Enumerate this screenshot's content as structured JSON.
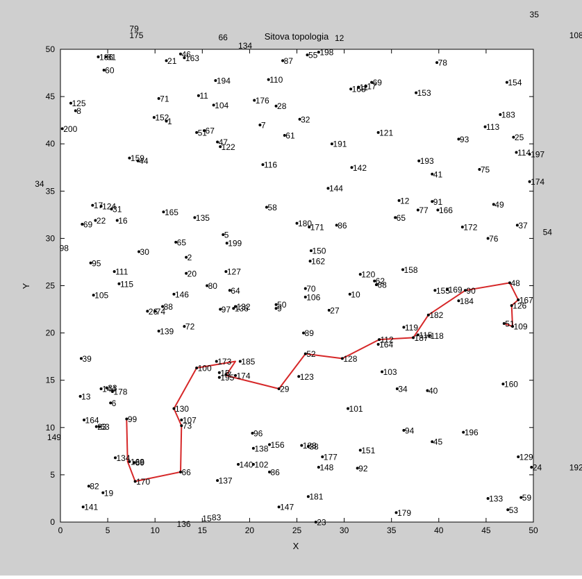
{
  "colors": {
    "figure_bg": "#cfcfcf",
    "axes_bg": "#ffffff",
    "axis": "#000000",
    "route": "#d62728",
    "point": "#000000"
  },
  "chart_data": {
    "type": "scatter",
    "title": "Sitova topologia",
    "xlabel": "X",
    "ylabel": "Y",
    "xlim": [
      0,
      50
    ],
    "ylim": [
      0,
      50
    ],
    "xticks": [
      "0",
      "5",
      "10",
      "15",
      "20",
      "25",
      "30",
      "35",
      "40",
      "45",
      "50"
    ],
    "yticks": [
      "0",
      "5",
      "10",
      "15",
      "20",
      "25",
      "30",
      "35",
      "40",
      "45",
      "50"
    ],
    "grid": false,
    "legend": "none",
    "points": [
      {
        "label": "186",
        "x": 4.0,
        "y": 49.2
      },
      {
        "label": "81",
        "x": 4.8,
        "y": 49.2
      },
      {
        "label": "60",
        "x": 4.6,
        "y": 47.8
      },
      {
        "label": "21",
        "x": 11.2,
        "y": 48.8
      },
      {
        "label": "46",
        "x": 12.7,
        "y": 49.5
      },
      {
        "label": "163",
        "x": 13.1,
        "y": 49.1
      },
      {
        "label": "87",
        "x": 23.5,
        "y": 48.8
      },
      {
        "label": "55",
        "x": 26.1,
        "y": 49.4
      },
      {
        "label": "198",
        "x": 27.3,
        "y": 49.7
      },
      {
        "label": "78",
        "x": 39.8,
        "y": 48.6
      },
      {
        "label": "194",
        "x": 16.4,
        "y": 46.7
      },
      {
        "label": "110",
        "x": 22.0,
        "y": 46.8
      },
      {
        "label": "168",
        "x": 30.7,
        "y": 45.8
      },
      {
        "label": "11",
        "x": 31.5,
        "y": 46.0
      },
      {
        "label": "17",
        "x": 32.3,
        "y": 46.1
      },
      {
        "label": "69",
        "x": 32.9,
        "y": 46.5
      },
      {
        "label": "153",
        "x": 37.6,
        "y": 45.4
      },
      {
        "label": "154",
        "x": 47.2,
        "y": 46.5
      },
      {
        "label": "125",
        "x": 1.1,
        "y": 44.3
      },
      {
        "label": "8",
        "x": 1.6,
        "y": 43.5
      },
      {
        "label": "71",
        "x": 10.4,
        "y": 44.8
      },
      {
        "label": "11",
        "x": 14.6,
        "y": 45.1
      },
      {
        "label": "104",
        "x": 16.2,
        "y": 44.1
      },
      {
        "label": "176",
        "x": 20.5,
        "y": 44.6
      },
      {
        "label": "28",
        "x": 22.8,
        "y": 44.0
      },
      {
        "label": "183",
        "x": 46.5,
        "y": 43.1
      },
      {
        "label": "152",
        "x": 9.9,
        "y": 42.8
      },
      {
        "label": "1",
        "x": 11.2,
        "y": 42.4
      },
      {
        "label": "7",
        "x": 21.1,
        "y": 42.0
      },
      {
        "label": "32",
        "x": 25.3,
        "y": 42.6
      },
      {
        "label": "113",
        "x": 44.9,
        "y": 41.8
      },
      {
        "label": "200",
        "x": 0.2,
        "y": 41.6
      },
      {
        "label": "51",
        "x": 14.4,
        "y": 41.2
      },
      {
        "label": "67",
        "x": 15.2,
        "y": 41.4
      },
      {
        "label": "61",
        "x": 23.7,
        "y": 40.9
      },
      {
        "label": "121",
        "x": 33.6,
        "y": 41.2
      },
      {
        "label": "25",
        "x": 47.9,
        "y": 40.7
      },
      {
        "label": "93",
        "x": 42.1,
        "y": 40.5
      },
      {
        "label": "47",
        "x": 16.6,
        "y": 40.2
      },
      {
        "label": "122",
        "x": 16.9,
        "y": 39.7
      },
      {
        "label": "191",
        "x": 28.7,
        "y": 40.0
      },
      {
        "label": "114",
        "x": 48.2,
        "y": 39.1
      },
      {
        "label": "197",
        "x": 49.6,
        "y": 38.9
      },
      {
        "label": "159",
        "x": 7.3,
        "y": 38.5
      },
      {
        "label": "44",
        "x": 8.2,
        "y": 38.2
      },
      {
        "label": "116",
        "x": 21.4,
        "y": 37.8
      },
      {
        "label": "193",
        "x": 37.9,
        "y": 38.2
      },
      {
        "label": "142",
        "x": 30.8,
        "y": 37.5
      },
      {
        "label": "41",
        "x": 39.3,
        "y": 36.8
      },
      {
        "label": "75",
        "x": 44.3,
        "y": 37.3
      },
      {
        "label": "174",
        "x": 49.6,
        "y": 36.0
      },
      {
        "label": "144",
        "x": 28.3,
        "y": 35.3
      },
      {
        "label": "17",
        "x": 3.4,
        "y": 33.5
      },
      {
        "label": "124",
        "x": 4.3,
        "y": 33.4
      },
      {
        "label": "31",
        "x": 5.4,
        "y": 33.1
      },
      {
        "label": "12",
        "x": 35.8,
        "y": 34.0
      },
      {
        "label": "91",
        "x": 39.3,
        "y": 33.9
      },
      {
        "label": "58",
        "x": 21.8,
        "y": 33.3
      },
      {
        "label": "49",
        "x": 45.8,
        "y": 33.6
      },
      {
        "label": "165",
        "x": 10.9,
        "y": 32.8
      },
      {
        "label": "77",
        "x": 37.8,
        "y": 33.0
      },
      {
        "label": "166",
        "x": 39.9,
        "y": 33.0
      },
      {
        "label": "135",
        "x": 14.2,
        "y": 32.2
      },
      {
        "label": "65",
        "x": 35.4,
        "y": 32.2
      },
      {
        "label": "22",
        "x": 3.7,
        "y": 31.9
      },
      {
        "label": "16",
        "x": 6.0,
        "y": 31.9
      },
      {
        "label": "69",
        "x": 2.3,
        "y": 31.5
      },
      {
        "label": "180",
        "x": 25.0,
        "y": 31.6
      },
      {
        "label": "171",
        "x": 26.3,
        "y": 31.2
      },
      {
        "label": "86",
        "x": 29.2,
        "y": 31.4
      },
      {
        "label": "172",
        "x": 42.5,
        "y": 31.2
      },
      {
        "label": "37",
        "x": 48.3,
        "y": 31.4
      },
      {
        "label": "5",
        "x": 17.2,
        "y": 30.4
      },
      {
        "label": "76",
        "x": 45.2,
        "y": 30.0
      },
      {
        "label": "65",
        "x": 12.2,
        "y": 29.6
      },
      {
        "label": "199",
        "x": 17.6,
        "y": 29.5
      },
      {
        "label": "150",
        "x": 26.5,
        "y": 28.7
      },
      {
        "label": "30",
        "x": 8.3,
        "y": 28.6
      },
      {
        "label": "2",
        "x": 13.3,
        "y": 28.0
      },
      {
        "label": "162",
        "x": 26.4,
        "y": 27.6
      },
      {
        "label": "95",
        "x": 3.2,
        "y": 27.4
      },
      {
        "label": "111",
        "x": 5.7,
        "y": 26.5
      },
      {
        "label": "127",
        "x": 17.5,
        "y": 26.5
      },
      {
        "label": "158",
        "x": 36.2,
        "y": 26.7
      },
      {
        "label": "20",
        "x": 13.3,
        "y": 26.3
      },
      {
        "label": "120",
        "x": 31.7,
        "y": 26.2
      },
      {
        "label": "115",
        "x": 6.2,
        "y": 25.2
      },
      {
        "label": "80",
        "x": 15.5,
        "y": 25.0
      },
      {
        "label": "62",
        "x": 33.2,
        "y": 25.5
      },
      {
        "label": "68",
        "x": 33.4,
        "y": 25.1
      },
      {
        "label": "70",
        "x": 25.9,
        "y": 24.7
      },
      {
        "label": "64",
        "x": 17.9,
        "y": 24.5
      },
      {
        "label": "155",
        "x": 39.6,
        "y": 24.5
      },
      {
        "label": "169",
        "x": 40.9,
        "y": 24.6
      },
      {
        "label": "90",
        "x": 42.8,
        "y": 24.5
      },
      {
        "label": "48",
        "x": 47.5,
        "y": 25.3
      },
      {
        "label": "105",
        "x": 3.5,
        "y": 24.0
      },
      {
        "label": "146",
        "x": 12.0,
        "y": 24.1
      },
      {
        "label": "10",
        "x": 30.6,
        "y": 24.1
      },
      {
        "label": "106",
        "x": 25.9,
        "y": 23.8
      },
      {
        "label": "167",
        "x": 48.4,
        "y": 23.5
      },
      {
        "label": "184",
        "x": 42.1,
        "y": 23.4
      },
      {
        "label": "88",
        "x": 10.8,
        "y": 22.8
      },
      {
        "label": "97",
        "x": 16.9,
        "y": 22.5
      },
      {
        "label": "132",
        "x": 18.5,
        "y": 22.8
      },
      {
        "label": "136",
        "x": 18.3,
        "y": 22.6
      },
      {
        "label": "50",
        "x": 22.8,
        "y": 23.0
      },
      {
        "label": "9",
        "x": 22.8,
        "y": 22.6
      },
      {
        "label": "126",
        "x": 47.7,
        "y": 22.9
      },
      {
        "label": "26",
        "x": 9.2,
        "y": 22.3
      },
      {
        "label": "74",
        "x": 10.0,
        "y": 22.3
      },
      {
        "label": "27",
        "x": 28.4,
        "y": 22.4
      },
      {
        "label": "182",
        "x": 38.9,
        "y": 21.9
      },
      {
        "label": "51",
        "x": 46.9,
        "y": 21.0
      },
      {
        "label": "109",
        "x": 47.8,
        "y": 20.7
      },
      {
        "label": "72",
        "x": 13.1,
        "y": 20.7
      },
      {
        "label": "119",
        "x": 36.3,
        "y": 20.6
      },
      {
        "label": "139",
        "x": 10.4,
        "y": 20.2
      },
      {
        "label": "89",
        "x": 25.7,
        "y": 20.0
      },
      {
        "label": "115",
        "x": 37.8,
        "y": 19.8
      },
      {
        "label": "118",
        "x": 39.0,
        "y": 19.7
      },
      {
        "label": "187",
        "x": 37.3,
        "y": 19.5
      },
      {
        "label": "112",
        "x": 33.7,
        "y": 19.3
      },
      {
        "label": "164",
        "x": 33.6,
        "y": 18.8
      },
      {
        "label": "52",
        "x": 25.9,
        "y": 17.8
      },
      {
        "label": "128",
        "x": 29.8,
        "y": 17.3
      },
      {
        "label": "39",
        "x": 2.2,
        "y": 17.3
      },
      {
        "label": "173",
        "x": 16.5,
        "y": 17.0
      },
      {
        "label": "185",
        "x": 19.0,
        "y": 17.0
      },
      {
        "label": "100",
        "x": 14.4,
        "y": 16.3
      },
      {
        "label": "15",
        "x": 16.8,
        "y": 15.8
      },
      {
        "label": "7",
        "x": 17.5,
        "y": 15.6
      },
      {
        "label": "195",
        "x": 16.8,
        "y": 15.3
      },
      {
        "label": "174",
        "x": 18.5,
        "y": 15.5
      },
      {
        "label": "123",
        "x": 25.2,
        "y": 15.4
      },
      {
        "label": "103",
        "x": 34.0,
        "y": 15.9
      },
      {
        "label": "160",
        "x": 46.8,
        "y": 14.6
      },
      {
        "label": "29",
        "x": 23.1,
        "y": 14.1
      },
      {
        "label": "34",
        "x": 35.6,
        "y": 14.1
      },
      {
        "label": "40",
        "x": 38.8,
        "y": 13.9
      },
      {
        "label": "13",
        "x": 2.1,
        "y": 13.3
      },
      {
        "label": "144",
        "x": 4.3,
        "y": 14.1
      },
      {
        "label": "33",
        "x": 4.9,
        "y": 14.2
      },
      {
        "label": "178",
        "x": 5.5,
        "y": 13.8
      },
      {
        "label": "6",
        "x": 5.3,
        "y": 12.6
      },
      {
        "label": "101",
        "x": 30.4,
        "y": 12.0
      },
      {
        "label": "130",
        "x": 12.0,
        "y": 12.0
      },
      {
        "label": "99",
        "x": 7.0,
        "y": 10.9
      },
      {
        "label": "164",
        "x": 2.5,
        "y": 10.8
      },
      {
        "label": "107",
        "x": 12.8,
        "y": 10.8
      },
      {
        "label": "23",
        "x": 3.8,
        "y": 10.1
      },
      {
        "label": "63",
        "x": 4.1,
        "y": 10.1
      },
      {
        "label": "73",
        "x": 12.8,
        "y": 10.2
      },
      {
        "label": "94",
        "x": 36.3,
        "y": 9.7
      },
      {
        "label": "196",
        "x": 42.6,
        "y": 9.5
      },
      {
        "label": "96",
        "x": 20.3,
        "y": 9.4
      },
      {
        "label": "45",
        "x": 39.3,
        "y": 8.5
      },
      {
        "label": "138",
        "x": 20.4,
        "y": 7.8
      },
      {
        "label": "156",
        "x": 22.1,
        "y": 8.2
      },
      {
        "label": "188",
        "x": 25.5,
        "y": 8.1
      },
      {
        "label": "38",
        "x": 26.2,
        "y": 8.0
      },
      {
        "label": "151",
        "x": 31.7,
        "y": 7.6
      },
      {
        "label": "177",
        "x": 27.7,
        "y": 6.9
      },
      {
        "label": "134",
        "x": 5.8,
        "y": 6.8
      },
      {
        "label": "168",
        "x": 7.3,
        "y": 6.4
      },
      {
        "label": "89",
        "x": 7.8,
        "y": 6.3
      },
      {
        "label": "129",
        "x": 48.4,
        "y": 6.9
      },
      {
        "label": "140",
        "x": 18.8,
        "y": 6.1
      },
      {
        "label": "102",
        "x": 20.4,
        "y": 6.1
      },
      {
        "label": "148",
        "x": 27.3,
        "y": 5.8
      },
      {
        "label": "92",
        "x": 31.4,
        "y": 5.7
      },
      {
        "label": "24",
        "x": 49.8,
        "y": 5.8
      },
      {
        "label": "170",
        "x": 7.9,
        "y": 4.3
      },
      {
        "label": "66",
        "x": 12.7,
        "y": 5.3
      },
      {
        "label": "86",
        "x": 22.1,
        "y": 5.3
      },
      {
        "label": "137",
        "x": 16.6,
        "y": 4.4
      },
      {
        "label": "82",
        "x": 3.0,
        "y": 3.8
      },
      {
        "label": "19",
        "x": 4.5,
        "y": 3.1
      },
      {
        "label": "181",
        "x": 26.2,
        "y": 2.7
      },
      {
        "label": "133",
        "x": 45.2,
        "y": 2.5
      },
      {
        "label": "59",
        "x": 48.7,
        "y": 2.6
      },
      {
        "label": "141",
        "x": 2.4,
        "y": 1.6
      },
      {
        "label": "147",
        "x": 23.1,
        "y": 1.6
      },
      {
        "label": "53",
        "x": 47.3,
        "y": 1.3
      },
      {
        "label": "179",
        "x": 35.5,
        "y": 1.0
      },
      {
        "label": "23",
        "x": 27.0,
        "y": 0.0
      }
    ],
    "outside_labels": [
      {
        "label": "79",
        "x": 7.3,
        "y": 52.2
      },
      {
        "label": "175",
        "x": 7.3,
        "y": 51.5
      },
      {
        "label": "66",
        "x": 16.7,
        "y": 51.3
      },
      {
        "label": "134",
        "x": 18.8,
        "y": 50.4
      },
      {
        "label": "12",
        "x": 29.0,
        "y": 51.2
      },
      {
        "label": "35",
        "x": 49.6,
        "y": 53.7
      },
      {
        "label": "108",
        "x": 53.8,
        "y": 51.5
      },
      {
        "label": "34",
        "x": -2.7,
        "y": 35.8
      },
      {
        "label": "54",
        "x": 51.0,
        "y": 30.7
      },
      {
        "label": "98",
        "x": -0.1,
        "y": 29.0
      },
      {
        "label": "149",
        "x": -1.4,
        "y": 9.0
      },
      {
        "label": "192",
        "x": 53.8,
        "y": 5.8
      },
      {
        "label": "136",
        "x": 12.3,
        "y": -0.2
      },
      {
        "label": "15",
        "x": 15.0,
        "y": 0.4
      },
      {
        "label": "83",
        "x": 16.0,
        "y": 0.5
      }
    ],
    "route": [
      [
        7.0,
        10.9
      ],
      [
        7.1,
        6.4
      ],
      [
        7.9,
        4.3
      ],
      [
        12.7,
        5.3
      ],
      [
        12.8,
        10.2
      ],
      [
        12.0,
        12.0
      ],
      [
        14.4,
        16.3
      ],
      [
        18.5,
        17.0
      ],
      [
        17.5,
        15.5
      ],
      [
        23.1,
        14.1
      ],
      [
        25.9,
        17.8
      ],
      [
        29.8,
        17.3
      ],
      [
        33.7,
        19.3
      ],
      [
        37.3,
        19.5
      ],
      [
        38.9,
        21.9
      ],
      [
        42.8,
        24.5
      ],
      [
        47.5,
        25.3
      ],
      [
        48.4,
        23.5
      ],
      [
        47.7,
        22.9
      ],
      [
        47.8,
        20.7
      ],
      [
        46.9,
        21.0
      ]
    ]
  }
}
